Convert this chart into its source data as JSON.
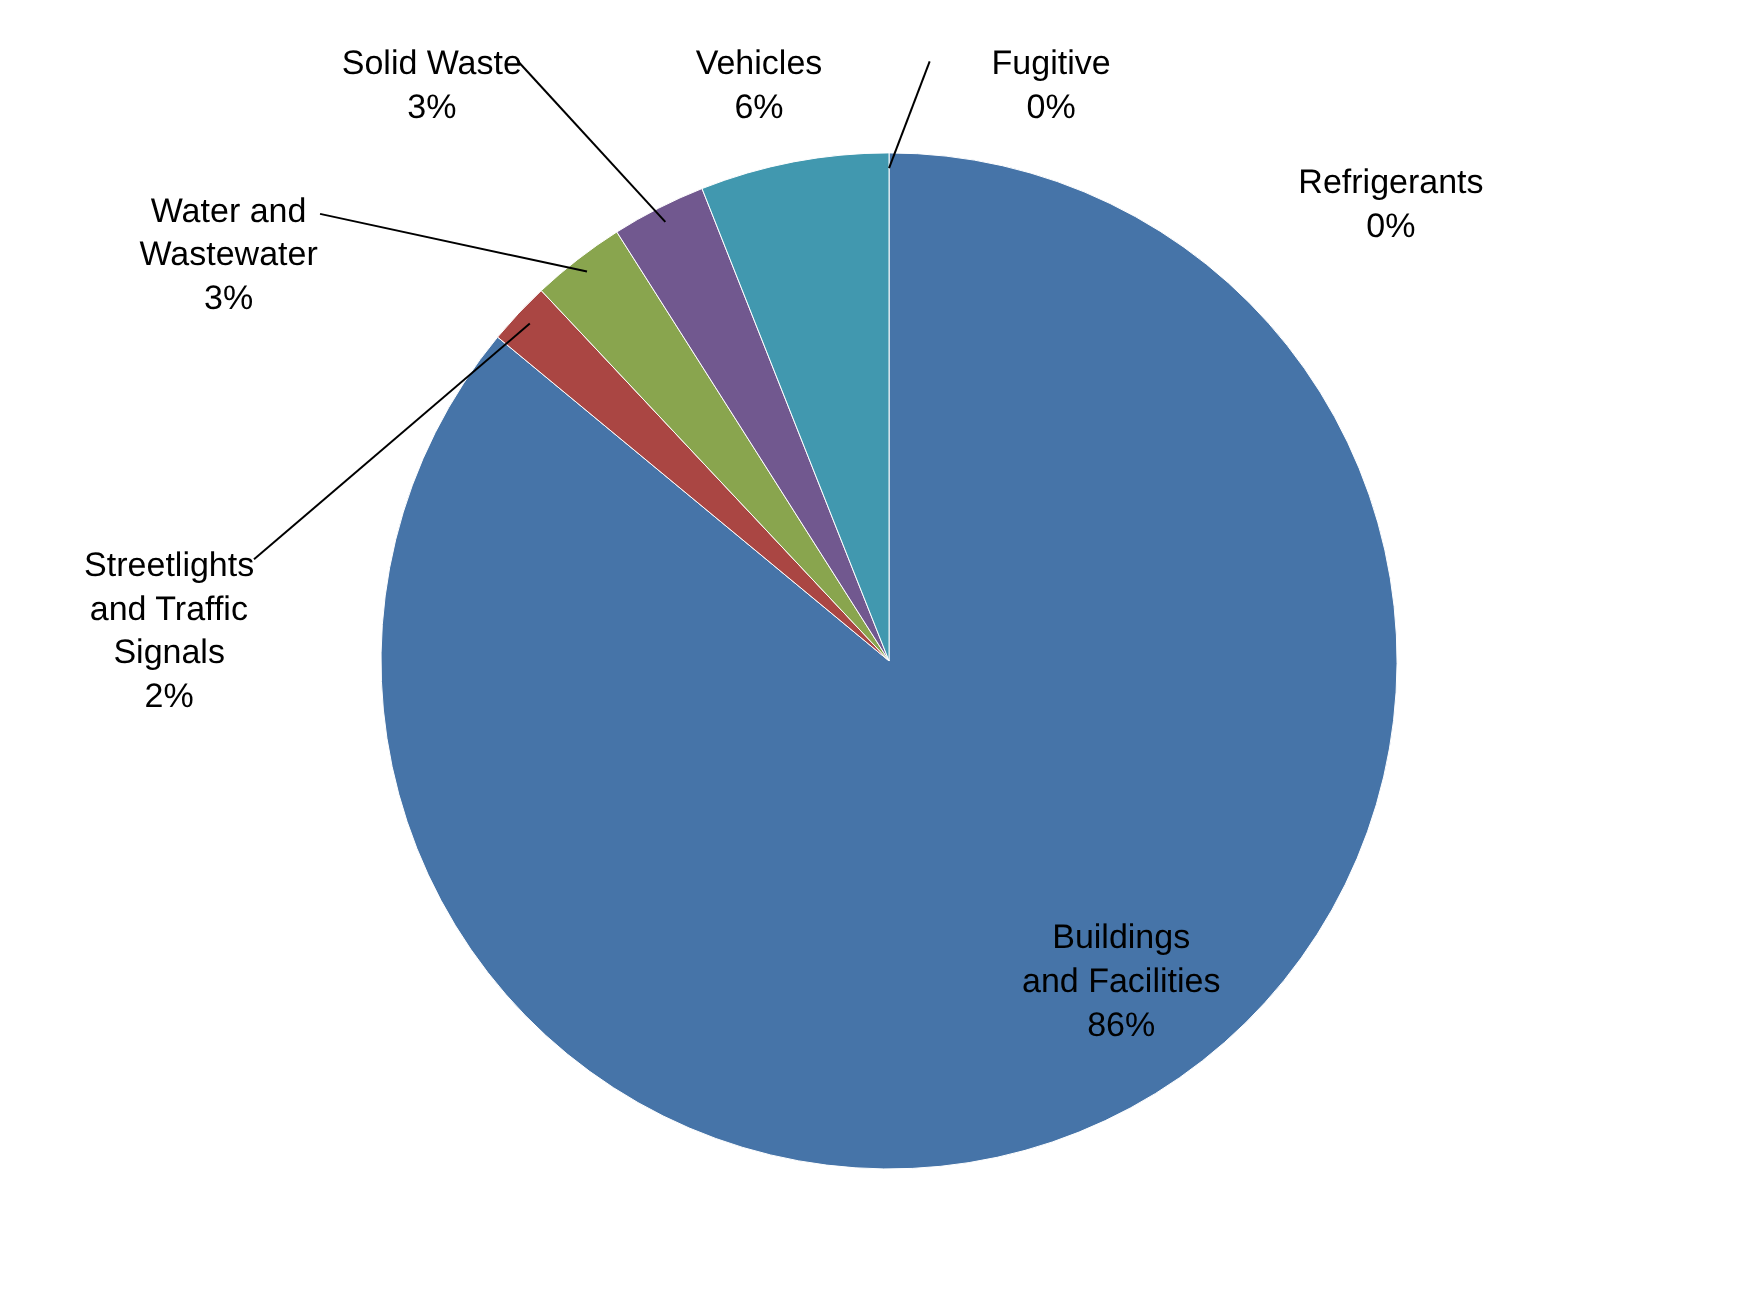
{
  "chart_data": {
    "type": "pie",
    "categories": [
      "Buildings\nand Facilities",
      "Streetlights\nand Traffic\nSignals",
      "Water and\nWastewater",
      "Solid Waste",
      "Vehicles",
      "Fugitive",
      "Refrigerants"
    ],
    "values": [
      86,
      2,
      3,
      3,
      6,
      0,
      0
    ],
    "value_labels": [
      "86%",
      "2%",
      "3%",
      "3%",
      "6%",
      "0%",
      "0%"
    ],
    "colors": [
      "#4674a8",
      "#aa4643",
      "#89a54e",
      "#71588f",
      "#4198af",
      "#db843d",
      "#93a9cf"
    ]
  }
}
